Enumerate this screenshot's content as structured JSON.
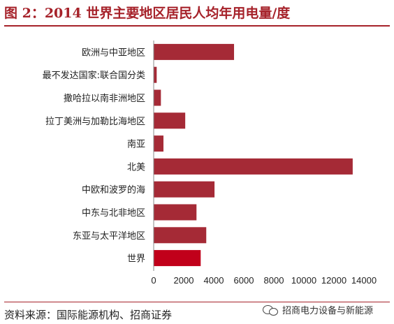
{
  "header": {
    "title": "图 2：2014 世界主要地区居民人均年用电量/度"
  },
  "footer": {
    "source": "资料来源：国际能源机构、招商证券",
    "watermark": "招商电力设备与新能源",
    "watermark_icon": "wechat-icon"
  },
  "colors": {
    "bar": "#a52a36",
    "highlight_bar": "#c1001a",
    "title": "#a6222a",
    "axis": "#888888"
  },
  "chart_data": {
    "type": "bar",
    "orientation": "horizontal",
    "title": "图 2：2014 世界主要地区居民人均年用电量/度",
    "xlabel": "",
    "ylabel": "",
    "categories": [
      "欧洲与中亚地区",
      "最不发达国家:联合国分类",
      "撒哈拉以南非洲地区",
      "拉丁美洲与加勒比海地区",
      "南亚",
      "北美",
      "中欧和波罗的海",
      "中东与北非地区",
      "东亚与太平洋地区",
      "世界"
    ],
    "values": [
      5350,
      200,
      480,
      2100,
      650,
      13250,
      4050,
      2850,
      3500,
      3130
    ],
    "highlight": "世界",
    "xlim": [
      0,
      14000
    ],
    "xticks": [
      "0",
      "2000",
      "4000",
      "6000",
      "8000",
      "10000",
      "12000",
      "14000"
    ],
    "grid": false,
    "legend": "none"
  }
}
